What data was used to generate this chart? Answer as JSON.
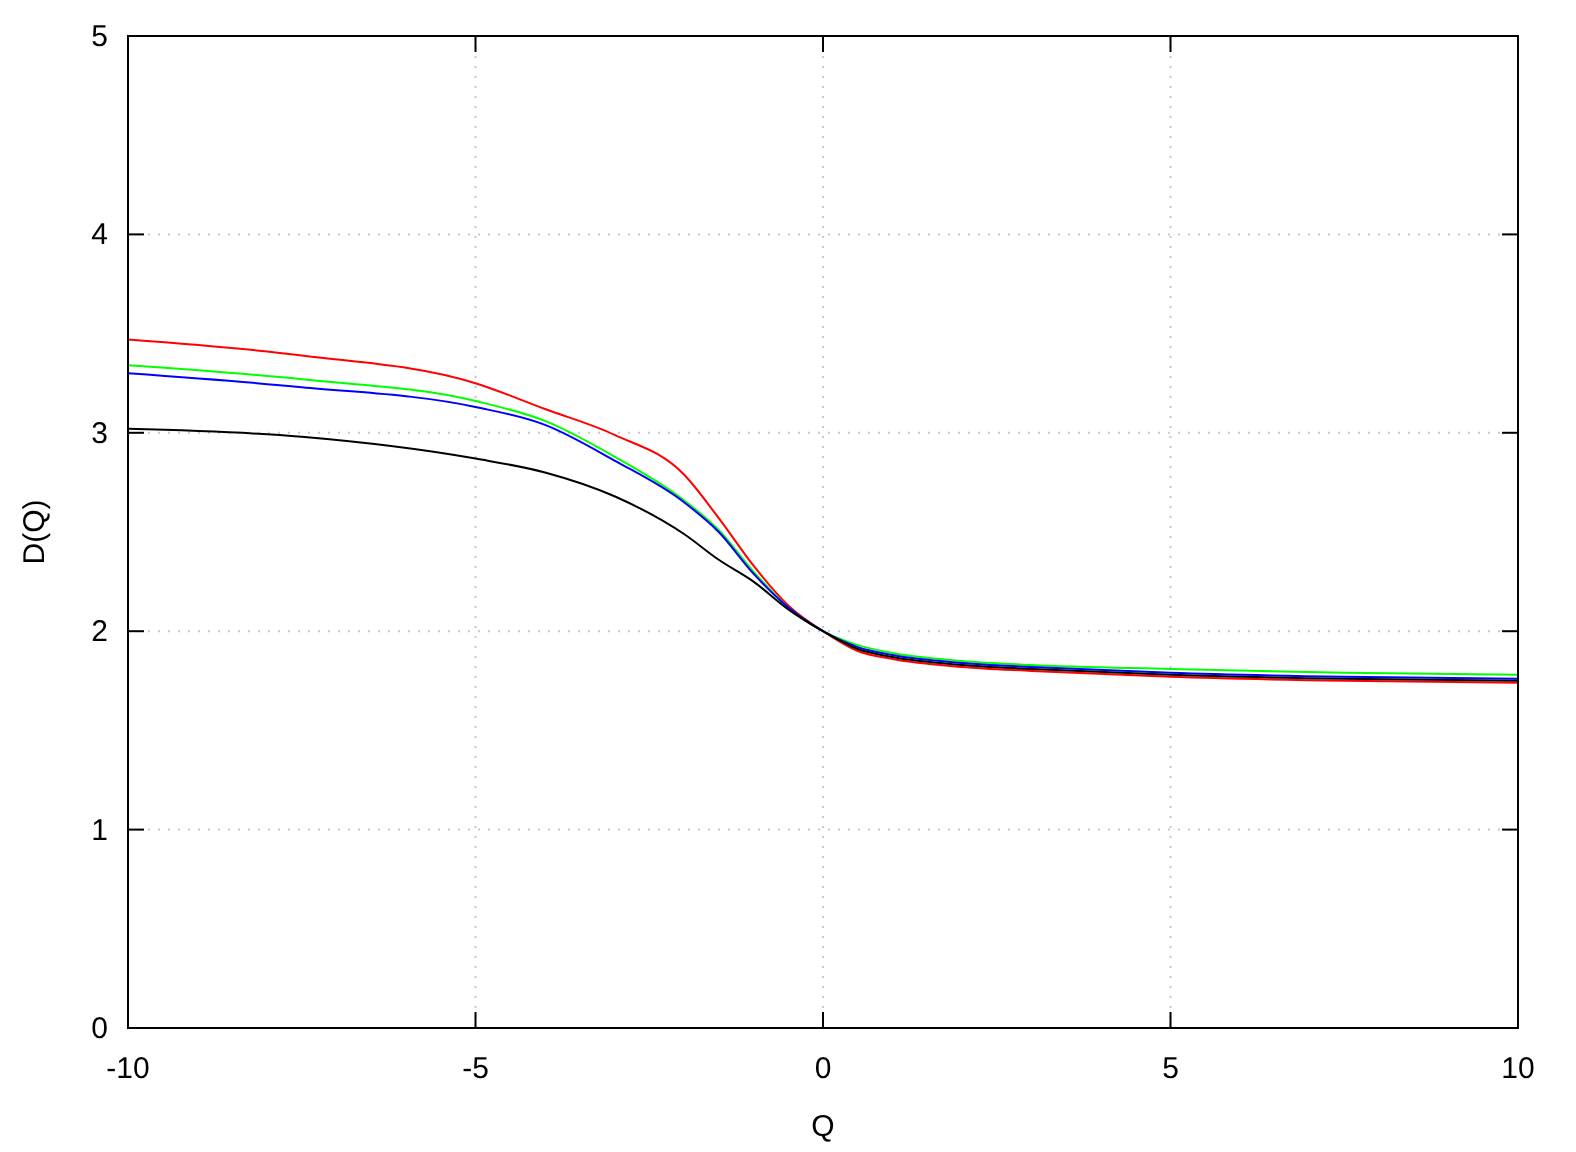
{
  "chart_data": {
    "type": "line",
    "xlabel": "Q",
    "ylabel": "D(Q)",
    "x": [
      -10,
      -7.5,
      -5,
      -4,
      -3,
      -2,
      -1.5,
      -1,
      -0.5,
      0,
      0.5,
      1,
      2,
      3,
      5,
      7.5,
      10
    ],
    "series": [
      {
        "color": "#ff0000",
        "values": [
          3.47,
          3.39,
          3.25,
          3.12,
          2.99,
          2.79,
          2.57,
          2.33,
          2.13,
          2.0,
          1.9,
          1.86,
          1.82,
          1.8,
          1.77,
          1.75,
          1.74
        ]
      },
      {
        "color": "#00ff00",
        "values": [
          3.34,
          3.27,
          3.16,
          3.06,
          2.88,
          2.66,
          2.51,
          2.3,
          2.12,
          2.0,
          1.93,
          1.89,
          1.85,
          1.83,
          1.81,
          1.79,
          1.78
        ]
      },
      {
        "color": "#0000ff",
        "values": [
          3.3,
          3.23,
          3.13,
          3.04,
          2.86,
          2.65,
          2.5,
          2.29,
          2.12,
          2.0,
          1.92,
          1.88,
          1.84,
          1.82,
          1.79,
          1.77,
          1.76
        ]
      },
      {
        "color": "#000000",
        "values": [
          3.02,
          2.98,
          2.87,
          2.8,
          2.68,
          2.49,
          2.36,
          2.25,
          2.11,
          2.0,
          1.91,
          1.87,
          1.83,
          1.81,
          1.78,
          1.76,
          1.75
        ]
      }
    ],
    "xlim": [
      -10,
      10
    ],
    "xticks": [
      -10,
      -5,
      0,
      5,
      10
    ],
    "ylim": [
      0,
      5
    ],
    "yticks": [
      0,
      1,
      2,
      3,
      4,
      5
    ],
    "grid": true,
    "line_style": "solid",
    "marker": "none"
  }
}
